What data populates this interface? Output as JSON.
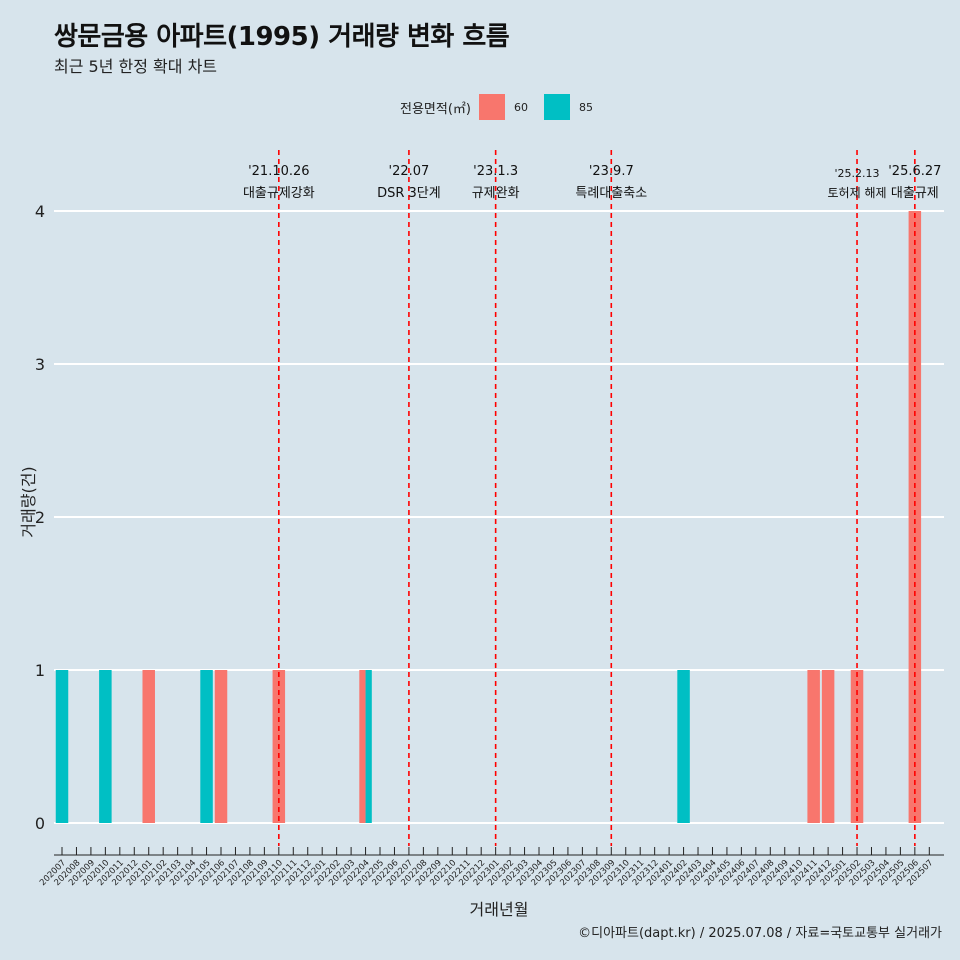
{
  "title": "쌍문금용 아파트(1995) 거래량 변화 흐름",
  "subtitle": "최근 5년 한정 확대 차트",
  "caption": "©디아파트(dapt.kr) / 2025.07.08 / 자료=국토교통부 실거래가",
  "colors": {
    "background": "#d7e4ec",
    "series_60": "#f8766d",
    "series_85": "#00bfc4",
    "event_line": "#ff0000",
    "grid": "#ffffff"
  },
  "chart_data": {
    "type": "bar",
    "xlabel": "거래년월",
    "ylabel": "거래량(건)",
    "ylim": [
      0,
      4
    ],
    "yticks": [
      0,
      1,
      2,
      3,
      4
    ],
    "grid": "horizontal",
    "legend_title": "전용면적(㎡)",
    "legend_position": "top",
    "categories": [
      "202007",
      "202008",
      "202009",
      "202010",
      "202011",
      "202012",
      "202101",
      "202102",
      "202103",
      "202104",
      "202105",
      "202106",
      "202107",
      "202108",
      "202109",
      "202110",
      "202111",
      "202112",
      "202201",
      "202202",
      "202203",
      "202204",
      "202205",
      "202206",
      "202207",
      "202208",
      "202209",
      "202210",
      "202211",
      "202212",
      "202301",
      "202302",
      "202303",
      "202304",
      "202305",
      "202306",
      "202307",
      "202308",
      "202309",
      "202310",
      "202311",
      "202312",
      "202401",
      "202402",
      "202403",
      "202404",
      "202405",
      "202406",
      "202407",
      "202408",
      "202409",
      "202410",
      "202411",
      "202412",
      "202501",
      "202502",
      "202503",
      "202504",
      "202505",
      "202506",
      "202507"
    ],
    "series": [
      {
        "name": "60",
        "color": "#f8766d",
        "points": [
          {
            "x": "202101",
            "y": 1
          },
          {
            "x": "202106",
            "y": 1
          },
          {
            "x": "202110",
            "y": 1
          },
          {
            "x": "202204",
            "y": 1
          },
          {
            "x": "202411",
            "y": 1
          },
          {
            "x": "202412",
            "y": 1
          },
          {
            "x": "202502",
            "y": 1
          },
          {
            "x": "202506",
            "y": 4
          }
        ]
      },
      {
        "name": "85",
        "color": "#00bfc4",
        "points": [
          {
            "x": "202007",
            "y": 1
          },
          {
            "x": "202010",
            "y": 1
          },
          {
            "x": "202105",
            "y": 1
          },
          {
            "x": "202204",
            "y": 1
          },
          {
            "x": "202402",
            "y": 1
          }
        ]
      }
    ],
    "events": [
      {
        "x": "202110",
        "date": "'21.10.26",
        "label": "대출규제강화"
      },
      {
        "x": "202207",
        "date": "'22.07",
        "label": "DSR 3단계"
      },
      {
        "x": "202301",
        "date": "'23.1.3",
        "label": "규제완화"
      },
      {
        "x": "202309",
        "date": "'23.9.7",
        "label": "특례대출축소"
      },
      {
        "x": "202502",
        "date": "'25.2.13",
        "label": "토허제 해제"
      },
      {
        "x": "202506",
        "date": "'25.6.27",
        "label": "대출규제"
      }
    ]
  }
}
